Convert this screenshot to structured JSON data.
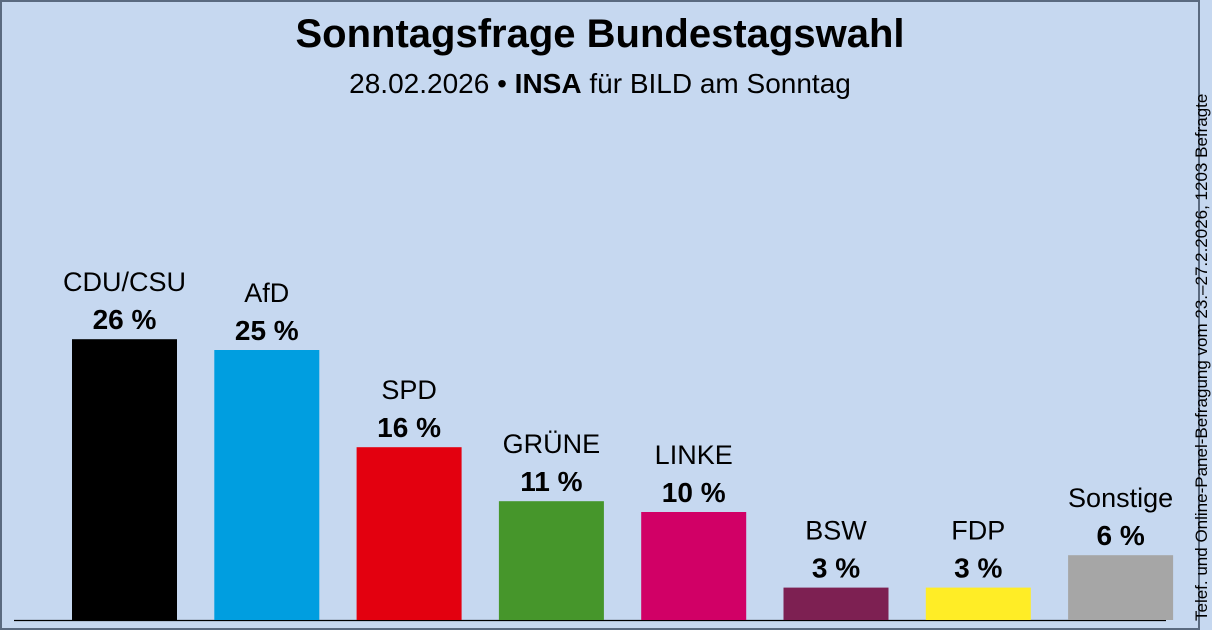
{
  "header": {
    "title": "Sonntagsfrage Bundestagswahl",
    "date": "28.02.2026",
    "separator": "•",
    "pollster": "INSA",
    "client": "für BILD am Sonntag"
  },
  "side_note": "Telef. und Online-Panel-Befragung vom 23.–27.2.2026, 1203 Befragte",
  "chart_data": {
    "type": "bar",
    "title": "Sonntagsfrage Bundestagswahl",
    "xlabel": "",
    "ylabel": "",
    "grid": false,
    "unit": "%",
    "categories": [
      "CDU/CSU",
      "AfD",
      "SPD",
      "GRÜNE",
      "LINKE",
      "BSW",
      "FDP",
      "Sonstige"
    ],
    "values": [
      26,
      25,
      16,
      11,
      10,
      3,
      3,
      6
    ],
    "value_labels": [
      "26 %",
      "25 %",
      "16 %",
      "11 %",
      "10 %",
      "3 %",
      "3 %",
      "6 %"
    ],
    "colors": [
      "#000000",
      "#009ee0",
      "#e3000f",
      "#46962b",
      "#d10066",
      "#7d2052",
      "#ffed26",
      "#a6a6a6"
    ]
  }
}
